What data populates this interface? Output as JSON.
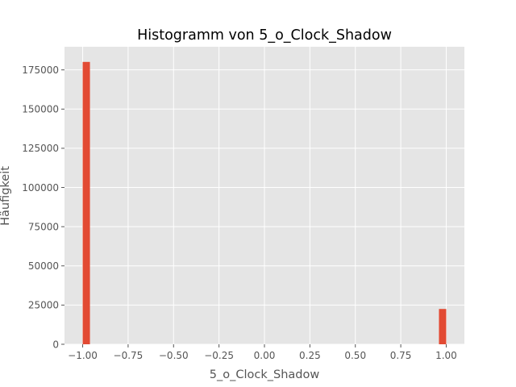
{
  "chart_data": {
    "type": "bar",
    "title": "Histogramm von 5_o_Clock_Shadow",
    "xlabel": "5_o_Clock_Shadow",
    "ylabel": "Häufigkeit",
    "xlim": [
      -1.1,
      1.1
    ],
    "ylim": [
      0,
      189750
    ],
    "xticks": [
      -1.0,
      -0.75,
      -0.5,
      -0.25,
      0.0,
      0.25,
      0.5,
      0.75,
      1.0
    ],
    "xtick_labels": [
      "−1.00",
      "−0.75",
      "−0.50",
      "−0.25",
      "0.00",
      "0.25",
      "0.50",
      "0.75",
      "1.00"
    ],
    "yticks": [
      0,
      25000,
      50000,
      75000,
      100000,
      125000,
      150000,
      175000
    ],
    "ytick_labels": [
      "0",
      "25000",
      "50000",
      "75000",
      "100000",
      "125000",
      "150000",
      "175000"
    ],
    "bins": [
      {
        "x0": -1.0,
        "x1": -0.96,
        "count": 180083
      },
      {
        "x0": 0.96,
        "x1": 1.0,
        "count": 22516
      }
    ],
    "grid": true,
    "colors": {
      "bar": "#e24a33",
      "plot_background": "#e5e5e5",
      "grid": "#ffffff",
      "tick": "#555555"
    }
  }
}
